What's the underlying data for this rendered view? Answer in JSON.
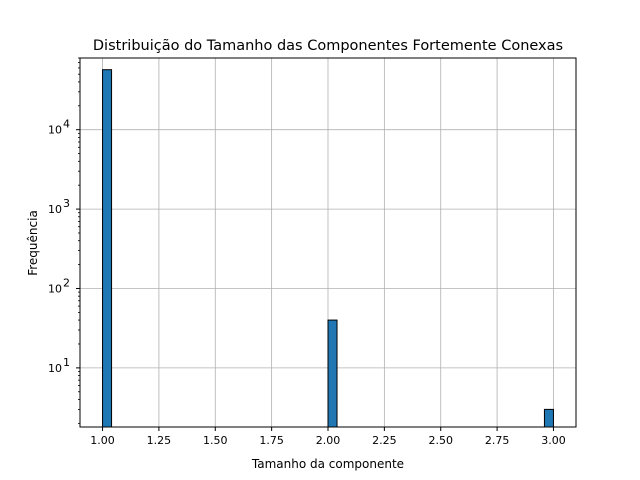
{
  "chart_data": {
    "type": "bar",
    "title": "Distribuição do Tamanho das Componentes Fortemente Conexas",
    "xlabel": "Tamanho da componente",
    "ylabel": "Frequência",
    "x_scale": "linear",
    "y_scale": "log",
    "xlim": [
      0.9,
      3.1
    ],
    "ylim": [
      1.8,
      80000
    ],
    "grid": true,
    "bar_color": "#1f77b4",
    "bar_edge_color": "#000000",
    "bins": 50,
    "bin_width": 0.04,
    "bars": [
      {
        "x_start": 1.0,
        "x_end": 1.04,
        "value": 57000
      },
      {
        "x_start": 2.0,
        "x_end": 2.04,
        "value": 40
      },
      {
        "x_start": 2.96,
        "x_end": 3.0,
        "value": 3
      }
    ],
    "x_ticks": [
      {
        "value": 1.0,
        "label": "1.00"
      },
      {
        "value": 1.25,
        "label": "1.25"
      },
      {
        "value": 1.5,
        "label": "1.50"
      },
      {
        "value": 1.75,
        "label": "1.75"
      },
      {
        "value": 2.0,
        "label": "2.00"
      },
      {
        "value": 2.25,
        "label": "2.25"
      },
      {
        "value": 2.5,
        "label": "2.50"
      },
      {
        "value": 2.75,
        "label": "2.75"
      },
      {
        "value": 3.0,
        "label": "3.00"
      }
    ],
    "y_ticks": [
      {
        "value": 10,
        "base": "10",
        "exp": "1"
      },
      {
        "value": 100,
        "base": "10",
        "exp": "2"
      },
      {
        "value": 1000,
        "base": "10",
        "exp": "3"
      },
      {
        "value": 10000,
        "base": "10",
        "exp": "4"
      }
    ]
  }
}
